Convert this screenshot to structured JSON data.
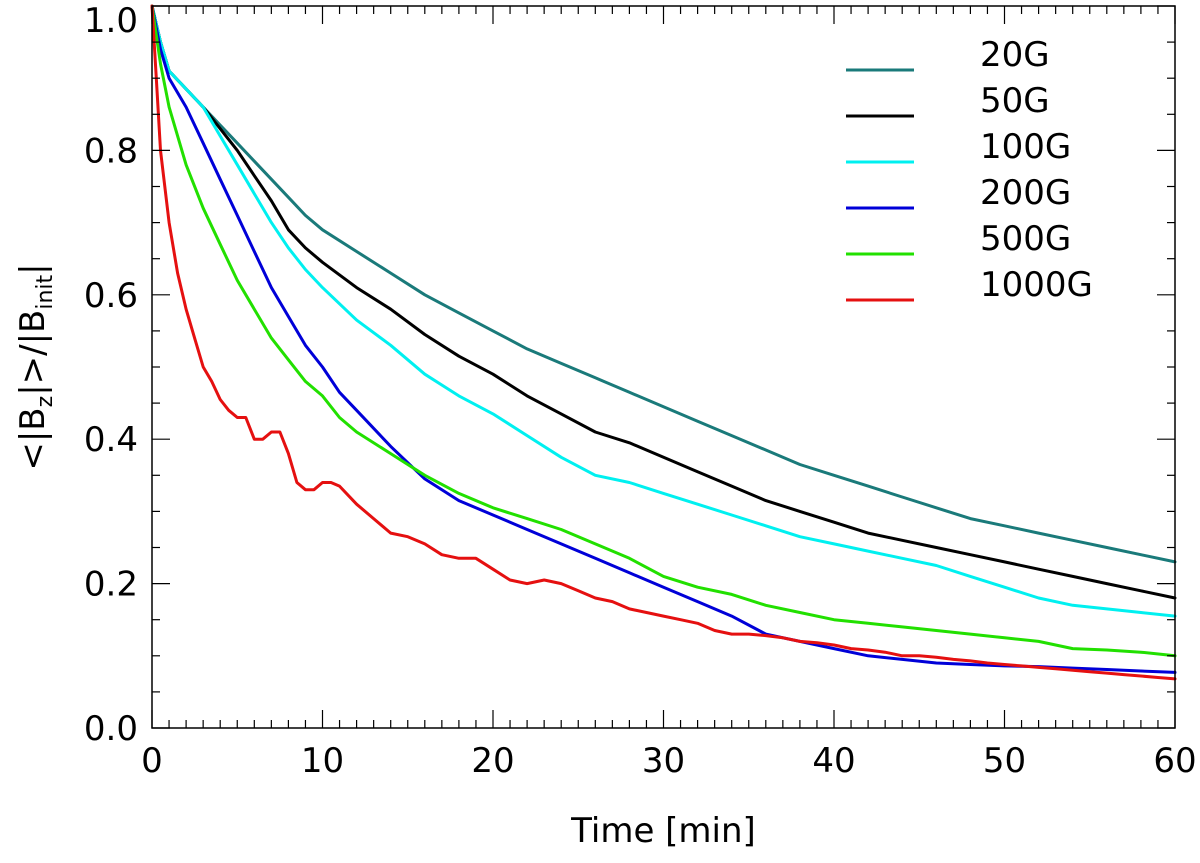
{
  "chart_data": {
    "type": "line",
    "title": "",
    "xlabel": "Time [min]",
    "ylabel": {
      "prefix": "<|B",
      "sub1": "z",
      "mid": "|>/|B",
      "sub2": "init",
      "suffix": "|"
    },
    "xlim": [
      0,
      60
    ],
    "ylim": [
      0,
      1.0
    ],
    "xticks": [
      0,
      10,
      20,
      30,
      40,
      50,
      60
    ],
    "xtick_labels": [
      "0",
      "10",
      "20",
      "30",
      "40",
      "50",
      "60"
    ],
    "yticks": [
      0.0,
      0.2,
      0.4,
      0.6,
      0.8,
      1.0
    ],
    "ytick_labels": [
      "0.0",
      "0.2",
      "0.4",
      "0.6",
      "0.8",
      "1.0"
    ],
    "x_minor_step": 1,
    "y_minor_step": 0.05,
    "grid": false,
    "legend_position": "top-right",
    "series": [
      {
        "name": "20G",
        "color": "#1a7a7a",
        "x": [
          0,
          0.5,
          1,
          2,
          3,
          4,
          5,
          6,
          7,
          8,
          9,
          10,
          12,
          14,
          16,
          18,
          20,
          22,
          24,
          26,
          28,
          30,
          32,
          34,
          36,
          38,
          40,
          42,
          44,
          46,
          48,
          50,
          52,
          54,
          56,
          58,
          60
        ],
        "values": [
          1.0,
          0.95,
          0.91,
          0.885,
          0.86,
          0.835,
          0.81,
          0.785,
          0.76,
          0.735,
          0.71,
          0.69,
          0.66,
          0.63,
          0.6,
          0.575,
          0.55,
          0.525,
          0.505,
          0.485,
          0.465,
          0.445,
          0.425,
          0.405,
          0.385,
          0.365,
          0.35,
          0.335,
          0.32,
          0.305,
          0.29,
          0.28,
          0.27,
          0.26,
          0.25,
          0.24,
          0.23
        ]
      },
      {
        "name": "50G",
        "color": "#000000",
        "x": [
          0,
          0.5,
          1,
          2,
          3,
          4,
          5,
          6,
          7,
          8,
          9,
          10,
          12,
          14,
          16,
          18,
          20,
          22,
          24,
          26,
          28,
          30,
          32,
          34,
          36,
          38,
          40,
          42,
          44,
          46,
          48,
          50,
          52,
          54,
          56,
          58,
          60
        ],
        "values": [
          1.0,
          0.95,
          0.91,
          0.885,
          0.86,
          0.83,
          0.8,
          0.765,
          0.73,
          0.69,
          0.665,
          0.645,
          0.61,
          0.58,
          0.545,
          0.515,
          0.49,
          0.46,
          0.435,
          0.41,
          0.395,
          0.375,
          0.355,
          0.335,
          0.315,
          0.3,
          0.285,
          0.27,
          0.26,
          0.25,
          0.24,
          0.23,
          0.22,
          0.21,
          0.2,
          0.19,
          0.18
        ]
      },
      {
        "name": "100G",
        "color": "#00f0f0",
        "x": [
          0,
          0.5,
          1,
          2,
          3,
          4,
          5,
          6,
          7,
          8,
          9,
          10,
          12,
          14,
          16,
          18,
          20,
          22,
          24,
          26,
          28,
          30,
          32,
          34,
          36,
          38,
          40,
          42,
          44,
          46,
          48,
          50,
          52,
          54,
          56,
          58,
          60
        ],
        "values": [
          1.0,
          0.95,
          0.91,
          0.885,
          0.86,
          0.82,
          0.78,
          0.74,
          0.7,
          0.665,
          0.635,
          0.61,
          0.565,
          0.53,
          0.49,
          0.46,
          0.435,
          0.405,
          0.375,
          0.35,
          0.34,
          0.325,
          0.31,
          0.295,
          0.28,
          0.265,
          0.255,
          0.245,
          0.235,
          0.225,
          0.21,
          0.195,
          0.18,
          0.17,
          0.165,
          0.16,
          0.155
        ]
      },
      {
        "name": "200G",
        "color": "#0000d8",
        "x": [
          0,
          0.5,
          1,
          2,
          3,
          4,
          5,
          6,
          7,
          8,
          9,
          10,
          11,
          12,
          14,
          16,
          18,
          20,
          22,
          24,
          26,
          28,
          30,
          32,
          34,
          36,
          38,
          40,
          42,
          44,
          46,
          48,
          50,
          52,
          54,
          56,
          58,
          60
        ],
        "values": [
          1.0,
          0.94,
          0.9,
          0.86,
          0.81,
          0.76,
          0.71,
          0.66,
          0.61,
          0.57,
          0.53,
          0.5,
          0.465,
          0.44,
          0.39,
          0.345,
          0.315,
          0.295,
          0.275,
          0.255,
          0.235,
          0.215,
          0.195,
          0.175,
          0.155,
          0.13,
          0.12,
          0.11,
          0.1,
          0.095,
          0.09,
          0.088,
          0.086,
          0.085,
          0.083,
          0.081,
          0.079,
          0.077
        ]
      },
      {
        "name": "500G",
        "color": "#22e000",
        "x": [
          0,
          0.5,
          1,
          2,
          3,
          4,
          5,
          6,
          7,
          8,
          9,
          10,
          11,
          12,
          14,
          16,
          18,
          20,
          22,
          24,
          26,
          28,
          30,
          32,
          34,
          36,
          38,
          40,
          42,
          44,
          46,
          48,
          50,
          52,
          54,
          56,
          58,
          60
        ],
        "values": [
          1.0,
          0.92,
          0.86,
          0.78,
          0.72,
          0.67,
          0.62,
          0.58,
          0.54,
          0.51,
          0.48,
          0.46,
          0.43,
          0.41,
          0.38,
          0.35,
          0.325,
          0.305,
          0.29,
          0.275,
          0.255,
          0.235,
          0.21,
          0.195,
          0.185,
          0.17,
          0.16,
          0.15,
          0.145,
          0.14,
          0.135,
          0.13,
          0.125,
          0.12,
          0.11,
          0.108,
          0.105,
          0.1
        ]
      },
      {
        "name": "1000G",
        "color": "#e51010",
        "x": [
          0,
          0.25,
          0.5,
          1,
          1.5,
          2,
          2.5,
          3,
          3.5,
          4,
          4.5,
          5,
          5.5,
          6,
          6.5,
          7,
          7.5,
          8,
          8.5,
          9,
          9.5,
          10,
          10.5,
          11,
          12,
          13,
          14,
          15,
          16,
          17,
          18,
          19,
          20,
          21,
          22,
          23,
          24,
          25,
          26,
          27,
          28,
          29,
          30,
          31,
          32,
          33,
          34,
          35,
          36,
          37,
          38,
          39,
          40,
          41,
          42,
          43,
          44,
          45,
          46,
          47,
          48,
          49,
          50,
          51,
          52,
          53,
          54,
          55,
          56,
          57,
          58,
          59,
          60
        ],
        "values": [
          1.0,
          0.9,
          0.8,
          0.7,
          0.63,
          0.58,
          0.54,
          0.5,
          0.48,
          0.455,
          0.44,
          0.43,
          0.43,
          0.4,
          0.4,
          0.41,
          0.41,
          0.38,
          0.34,
          0.33,
          0.33,
          0.34,
          0.34,
          0.335,
          0.31,
          0.29,
          0.27,
          0.265,
          0.255,
          0.24,
          0.235,
          0.235,
          0.22,
          0.205,
          0.2,
          0.205,
          0.2,
          0.19,
          0.18,
          0.175,
          0.165,
          0.16,
          0.155,
          0.15,
          0.145,
          0.135,
          0.13,
          0.13,
          0.128,
          0.125,
          0.12,
          0.118,
          0.115,
          0.11,
          0.108,
          0.105,
          0.1,
          0.1,
          0.098,
          0.095,
          0.093,
          0.09,
          0.088,
          0.086,
          0.084,
          0.082,
          0.08,
          0.078,
          0.076,
          0.074,
          0.072,
          0.07,
          0.068
        ]
      }
    ]
  }
}
